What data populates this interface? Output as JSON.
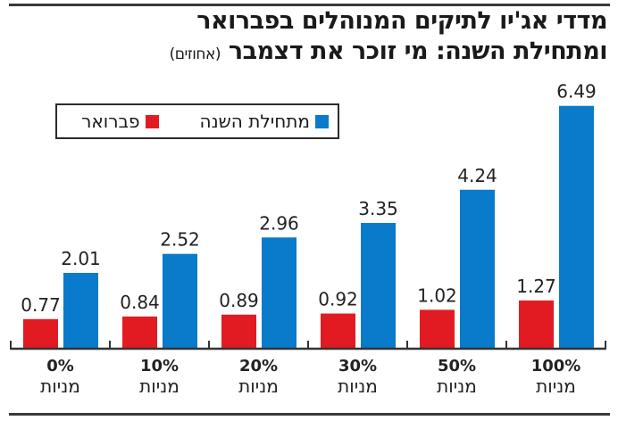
{
  "title": {
    "line1": "מדדי אג'יו לתיקים המנוהלים בפברואר",
    "line2": "ומתחילת השנה: מי זוכר את דצמבר",
    "unit": "(אחוזים)"
  },
  "legend": {
    "items": [
      {
        "label": "מתחילת השנה",
        "color": "#0a7acb"
      },
      {
        "label": "פברואר",
        "color": "#e21b23"
      }
    ]
  },
  "chart_data": {
    "type": "bar",
    "title": "מדדי אג'יו לתיקים המנוהלים בפברואר ומתחילת השנה: מי זוכר את דצמבר (אחוזים)",
    "xlabel": "",
    "ylabel": "",
    "ylim": [
      0,
      6.5
    ],
    "grid": false,
    "legend_position": "top-left",
    "categories": [
      "0% מניות",
      "10% מניות",
      "20% מניות",
      "30% מניות",
      "50% מניות",
      "100% מניות"
    ],
    "category_parts": [
      {
        "pct": "0%",
        "label": "מניות"
      },
      {
        "pct": "10%",
        "label": "מניות"
      },
      {
        "pct": "20%",
        "label": "מניות"
      },
      {
        "pct": "30%",
        "label": "מניות"
      },
      {
        "pct": "50%",
        "label": "מניות"
      },
      {
        "pct": "100%",
        "label": "מניות"
      }
    ],
    "series": [
      {
        "name": "פברואר",
        "color": "#e21b23",
        "values": [
          0.77,
          0.84,
          0.89,
          0.92,
          1.02,
          1.27
        ],
        "labels": [
          "0.77",
          "0.84",
          "0.89",
          "0.92",
          "1.02",
          "1.27"
        ]
      },
      {
        "name": "מתחילת השנה",
        "color": "#0a7acb",
        "values": [
          2.01,
          2.52,
          2.96,
          3.35,
          4.24,
          6.49
        ],
        "labels": [
          "2.01",
          "2.52",
          "2.96",
          "3.35",
          "4.24",
          "6.49"
        ]
      }
    ]
  }
}
